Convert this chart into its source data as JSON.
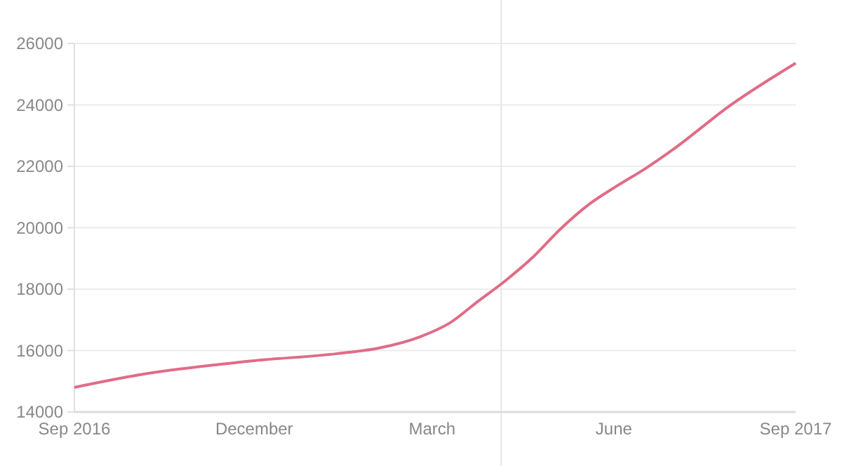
{
  "chart_data": {
    "type": "line",
    "x": [
      "2016-09-01",
      "2016-10-04",
      "2016-12-01",
      "2017-01-12",
      "2017-02-02",
      "2017-02-23",
      "2017-03-10",
      "2017-03-24",
      "2017-04-07",
      "2017-04-21",
      "2017-05-05",
      "2017-05-20",
      "2017-06-03",
      "2017-06-17",
      "2017-07-01",
      "2017-07-30",
      "2017-09-01"
    ],
    "series": [
      {
        "color": "#e06c88",
        "values": [
          14800,
          15210,
          15670,
          15900,
          16080,
          16450,
          16900,
          17590,
          18270,
          19040,
          19960,
          20790,
          21380,
          21930,
          22550,
          23990,
          25360
        ]
      }
    ],
    "xlim": [
      "2016-09-01",
      "2017-09-01"
    ],
    "xticks": [
      {
        "value": "2016-09-01",
        "label": "Sep 2016"
      },
      {
        "value": "2016-12-01",
        "label": "December"
      },
      {
        "value": "2017-03-01",
        "label": "March"
      },
      {
        "value": "2017-06-01",
        "label": "June"
      },
      {
        "value": "2017-09-01",
        "label": "Sep 2017"
      }
    ],
    "ylim": [
      14000,
      26000
    ],
    "yticks": [
      14000,
      16000,
      18000,
      20000,
      22000,
      24000,
      26000
    ],
    "grid": "y",
    "marker": "none",
    "line_style": "solid",
    "ref_lines": [
      {
        "axis": "x",
        "value": "2017-04-05",
        "color": "#e6e6e6"
      }
    ]
  }
}
